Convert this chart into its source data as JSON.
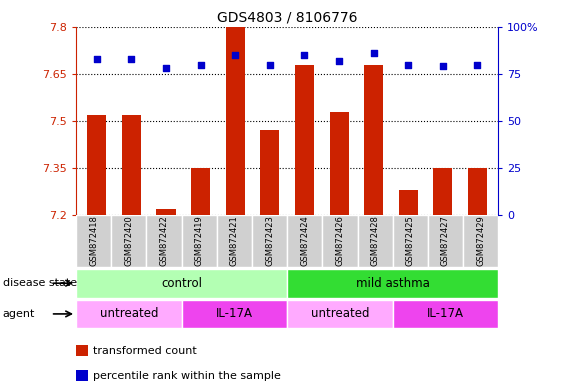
{
  "title": "GDS4803 / 8106776",
  "samples": [
    "GSM872418",
    "GSM872420",
    "GSM872422",
    "GSM872419",
    "GSM872421",
    "GSM872423",
    "GSM872424",
    "GSM872426",
    "GSM872428",
    "GSM872425",
    "GSM872427",
    "GSM872429"
  ],
  "bar_values": [
    7.52,
    7.52,
    7.22,
    7.35,
    7.8,
    7.47,
    7.68,
    7.53,
    7.68,
    7.28,
    7.35,
    7.35
  ],
  "percentile_values": [
    83,
    83,
    78,
    80,
    85,
    80,
    85,
    82,
    86,
    80,
    79,
    80
  ],
  "ylim_left": [
    7.2,
    7.8
  ],
  "yticks_left": [
    7.2,
    7.35,
    7.5,
    7.65,
    7.8
  ],
  "yticks_right": [
    0,
    25,
    50,
    75,
    100
  ],
  "ylim_right": [
    0,
    100
  ],
  "bar_color": "#cc2200",
  "dot_color": "#0000cc",
  "disease_state_groups": [
    {
      "label": "control",
      "start": 0,
      "end": 6,
      "color": "#b3ffb3"
    },
    {
      "label": "mild asthma",
      "start": 6,
      "end": 12,
      "color": "#33dd33"
    }
  ],
  "agent_groups": [
    {
      "label": "untreated",
      "start": 0,
      "end": 3,
      "color": "#ffaaff"
    },
    {
      "label": "IL-17A",
      "start": 3,
      "end": 6,
      "color": "#ee44ee"
    },
    {
      "label": "untreated",
      "start": 6,
      "end": 9,
      "color": "#ffaaff"
    },
    {
      "label": "IL-17A",
      "start": 9,
      "end": 12,
      "color": "#ee44ee"
    }
  ],
  "legend_items": [
    {
      "label": "transformed count",
      "color": "#cc2200"
    },
    {
      "label": "percentile rank within the sample",
      "color": "#0000cc"
    }
  ],
  "disease_state_label": "disease state",
  "agent_label": "agent",
  "sample_bg_color": "#d0d0d0",
  "sample_border_color": "#ffffff"
}
